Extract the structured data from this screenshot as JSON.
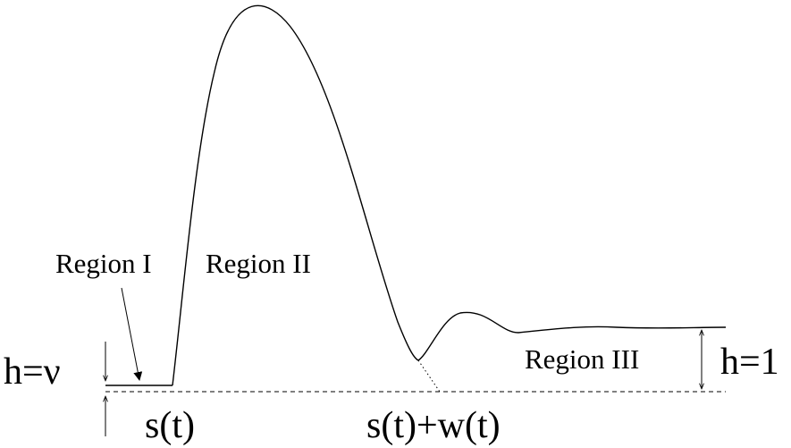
{
  "labels": {
    "region_1": "Region I",
    "region_2": "Region II",
    "region_3": "Region III",
    "h_nu": "h=ν",
    "h_1": "h=1",
    "s_t": "s(t)",
    "s_plus_w": "s(t)+w(t)"
  }
}
